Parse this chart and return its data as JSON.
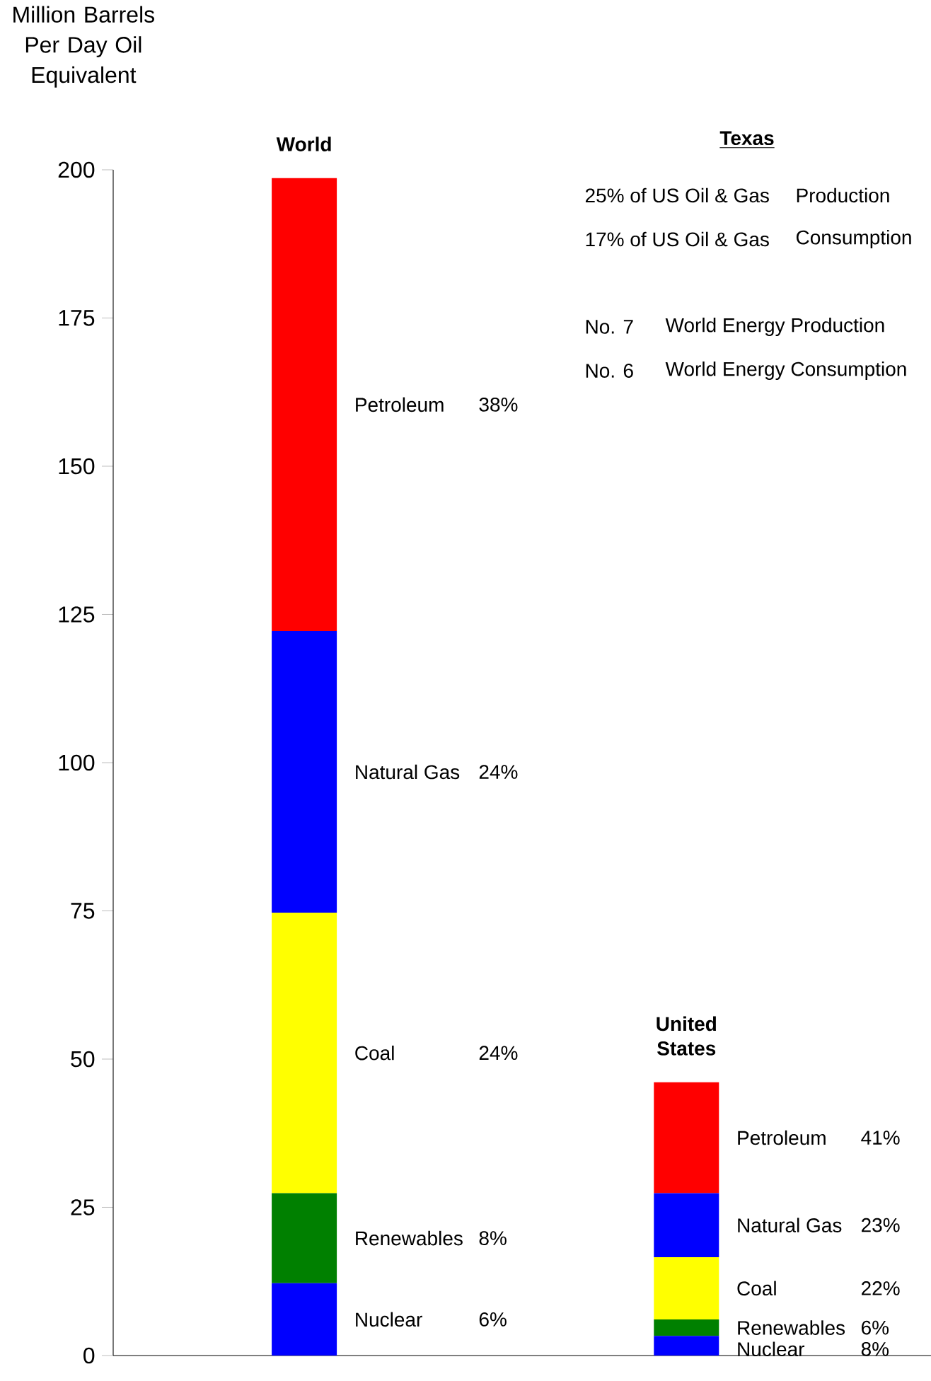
{
  "chart_data": {
    "type": "bar",
    "stacked": true,
    "ylabel": "Million Barrels Per Day Oil Equivalent",
    "categories": [
      "World",
      "United States"
    ],
    "series": [
      {
        "name": "Nuclear",
        "color": "#0000ff",
        "values": [
          12.2,
          3.3
        ]
      },
      {
        "name": "Renewables",
        "color": "#008000",
        "values": [
          15.2,
          2.8
        ]
      },
      {
        "name": "Coal",
        "color": "#ffff00",
        "values": [
          47.3,
          10.5
        ]
      },
      {
        "name": "Natural Gas",
        "color": "#0000ff",
        "values": [
          47.5,
          10.8
        ]
      },
      {
        "name": "Petroleum",
        "color": "#ff0000",
        "values": [
          76.4,
          18.7
        ]
      }
    ],
    "ylim": [
      0,
      200
    ],
    "yticks": [
      0,
      25,
      50,
      75,
      100,
      125,
      150,
      175,
      200
    ],
    "grid": false,
    "legend": false,
    "annotations": [
      "Texas",
      "25% of US Oil & Gas",
      "Production",
      "17% of US Oil & Gas",
      "Consumption",
      "No. 7",
      "World Energy Production",
      "No. 6",
      "World Energy Consumption",
      "6%",
      "8%",
      "24%",
      "24%",
      "38%",
      "8%",
      "6%",
      "22%",
      "23%",
      "41%"
    ]
  }
}
